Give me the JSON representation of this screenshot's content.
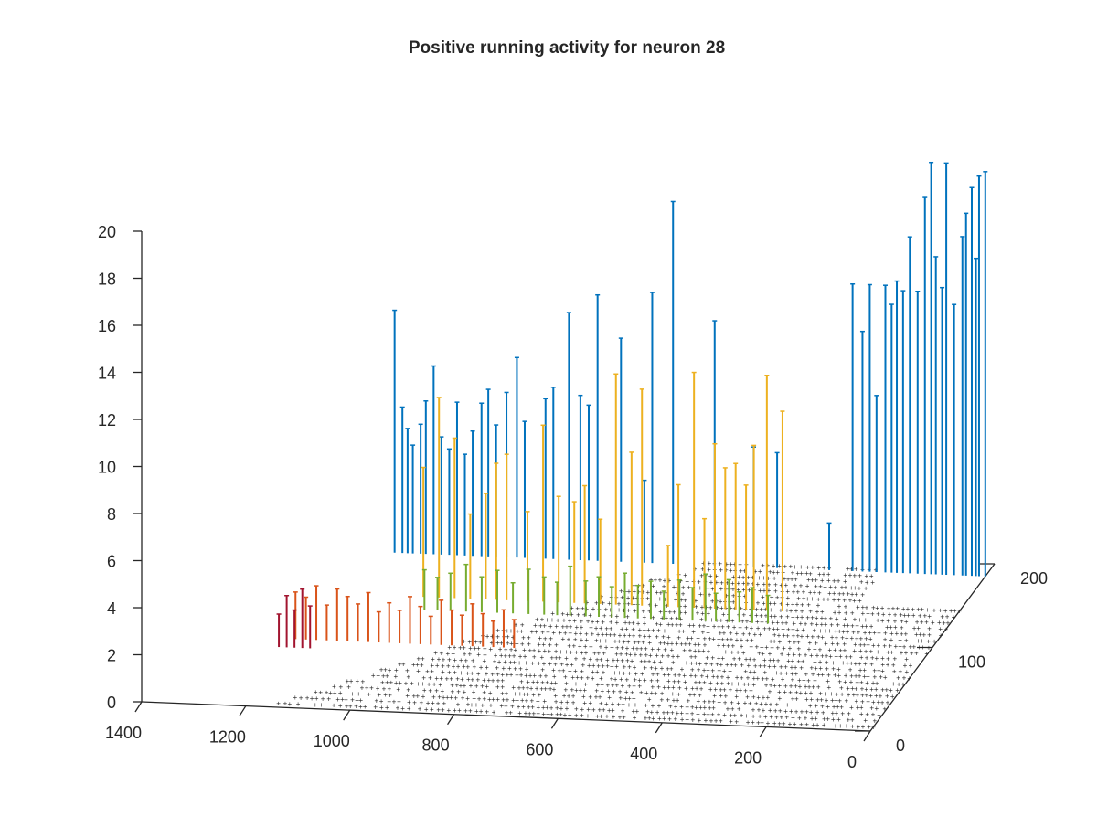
{
  "chart_data": {
    "type": "stem3",
    "title": "Positive running activity for neuron 28",
    "xlabel": "",
    "ylabel": "",
    "zlabel": "",
    "xlim": [
      0,
      1400
    ],
    "ylim": [
      0,
      200
    ],
    "zlim": [
      0,
      20
    ],
    "x_ticks": [
      "0",
      "200",
      "400",
      "600",
      "800",
      "1000",
      "1200",
      "1400"
    ],
    "y_ticks": [
      "0",
      "100",
      "200"
    ],
    "z_ticks": [
      "0",
      "2",
      "4",
      "6",
      "8",
      "10",
      "12",
      "14",
      "16",
      "18",
      "20"
    ],
    "grid": false,
    "series": [
      {
        "color": "#0072bd",
        "trial_index": 185,
        "x": [
          0,
          12,
          18,
          26,
          37,
          44,
          60,
          75,
          83,
          95,
          104,
          116,
          130,
          145,
          158,
          170,
          180,
          192,
          209,
          222,
          236,
          255,
          300,
          400,
          445,
          520,
          600,
          640,
          655,
          700,
          745,
          762,
          778,
          800,
          830,
          845,
          885,
          900,
          920,
          940,
          955,
          968,
          985,
          1000,
          1015,
          1030,
          1045,
          1060,
          1075,
          1085,
          1100,
          1110,
          1120,
          1135
        ],
        "values": [
          17.2,
          17.0,
          13.5,
          16.5,
          15.4,
          14.4,
          11.5,
          17.5,
          12.2,
          13.5,
          17.5,
          16.0,
          12.0,
          14.3,
          12.0,
          12.4,
          11.4,
          12.2,
          7.5,
          12.2,
          10.2,
          12.2,
          2.0,
          4.9,
          5.1,
          10.4,
          15.4,
          11.5,
          3.5,
          9.5,
          11.3,
          6.6,
          7.0,
          10.5,
          7.3,
          6.8,
          5.8,
          8.5,
          7.0,
          5.6,
          7.1,
          6.5,
          5.3,
          4.3,
          6.5,
          4.5,
          5.0,
          8.0,
          6.5,
          5.5,
          4.6,
          5.3,
          6.2,
          10.3
        ]
      },
      {
        "color": "#edb120",
        "trial_index": 135,
        "x": [
          330,
          360,
          385,
          400,
          420,
          440,
          460,
          480,
          500,
          530,
          550,
          600,
          620,
          650,
          680,
          710,
          730,
          760,
          790,
          820,
          860,
          880,
          900,
          930,
          960,
          990,
          1020
        ],
        "values": [
          8.5,
          10.0,
          7.0,
          5.3,
          6.2,
          6.0,
          7.0,
          3.8,
          10.0,
          5.2,
          2.6,
          9.2,
          6.5,
          9.8,
          3.6,
          5.0,
          4.3,
          4.5,
          7.5,
          3.8,
          6.2,
          5.8,
          4.5,
          3.6,
          6.8,
          8.5,
          5.5
        ]
      },
      {
        "color": "#77ac30",
        "trial_index": 120,
        "x": [
          340,
          370,
          395,
          415,
          440,
          460,
          485,
          510,
          540,
          565,
          590,
          615,
          640,
          665,
          690,
          720,
          745,
          770,
          800,
          830,
          860,
          890,
          920,
          950,
          975,
          1000
        ],
        "values": [
          1.2,
          1.5,
          1.3,
          1.8,
          1.2,
          2.0,
          1.4,
          1.7,
          1.2,
          1.6,
          1.4,
          1.9,
          1.3,
          1.7,
          1.5,
          2.1,
          1.4,
          1.6,
          1.9,
          1.3,
          1.8,
          1.5,
          2.0,
          1.6,
          1.4,
          1.7
        ]
      },
      {
        "color": "#d95319",
        "trial_index": 80,
        "x": [
          780,
          800,
          820,
          840,
          860,
          880,
          900,
          920,
          940,
          960,
          980,
          1000,
          1020,
          1040,
          1060,
          1080,
          1100,
          1120,
          1140,
          1160,
          1180,
          1200
        ],
        "values": [
          1.2,
          1.6,
          1.1,
          1.4,
          1.8,
          1.3,
          1.5,
          1.9,
          1.2,
          1.6,
          2.0,
          1.4,
          1.7,
          1.3,
          2.1,
          1.6,
          1.9,
          2.2,
          1.5,
          2.3,
          1.8,
          2.0
        ]
      },
      {
        "color": "#a2142f",
        "trial_index": 70,
        "x": [
          1160,
          1175,
          1190,
          1205,
          1220
        ],
        "values": [
          1.8,
          2.5,
          1.6,
          2.2,
          1.4
        ]
      }
    ],
    "baseline_rows": 26,
    "baseline_colors": [
      "#0072bd",
      "#d95319",
      "#edb120",
      "#7e2f8e",
      "#77ac30",
      "#4dbeee",
      "#a2142f"
    ]
  }
}
